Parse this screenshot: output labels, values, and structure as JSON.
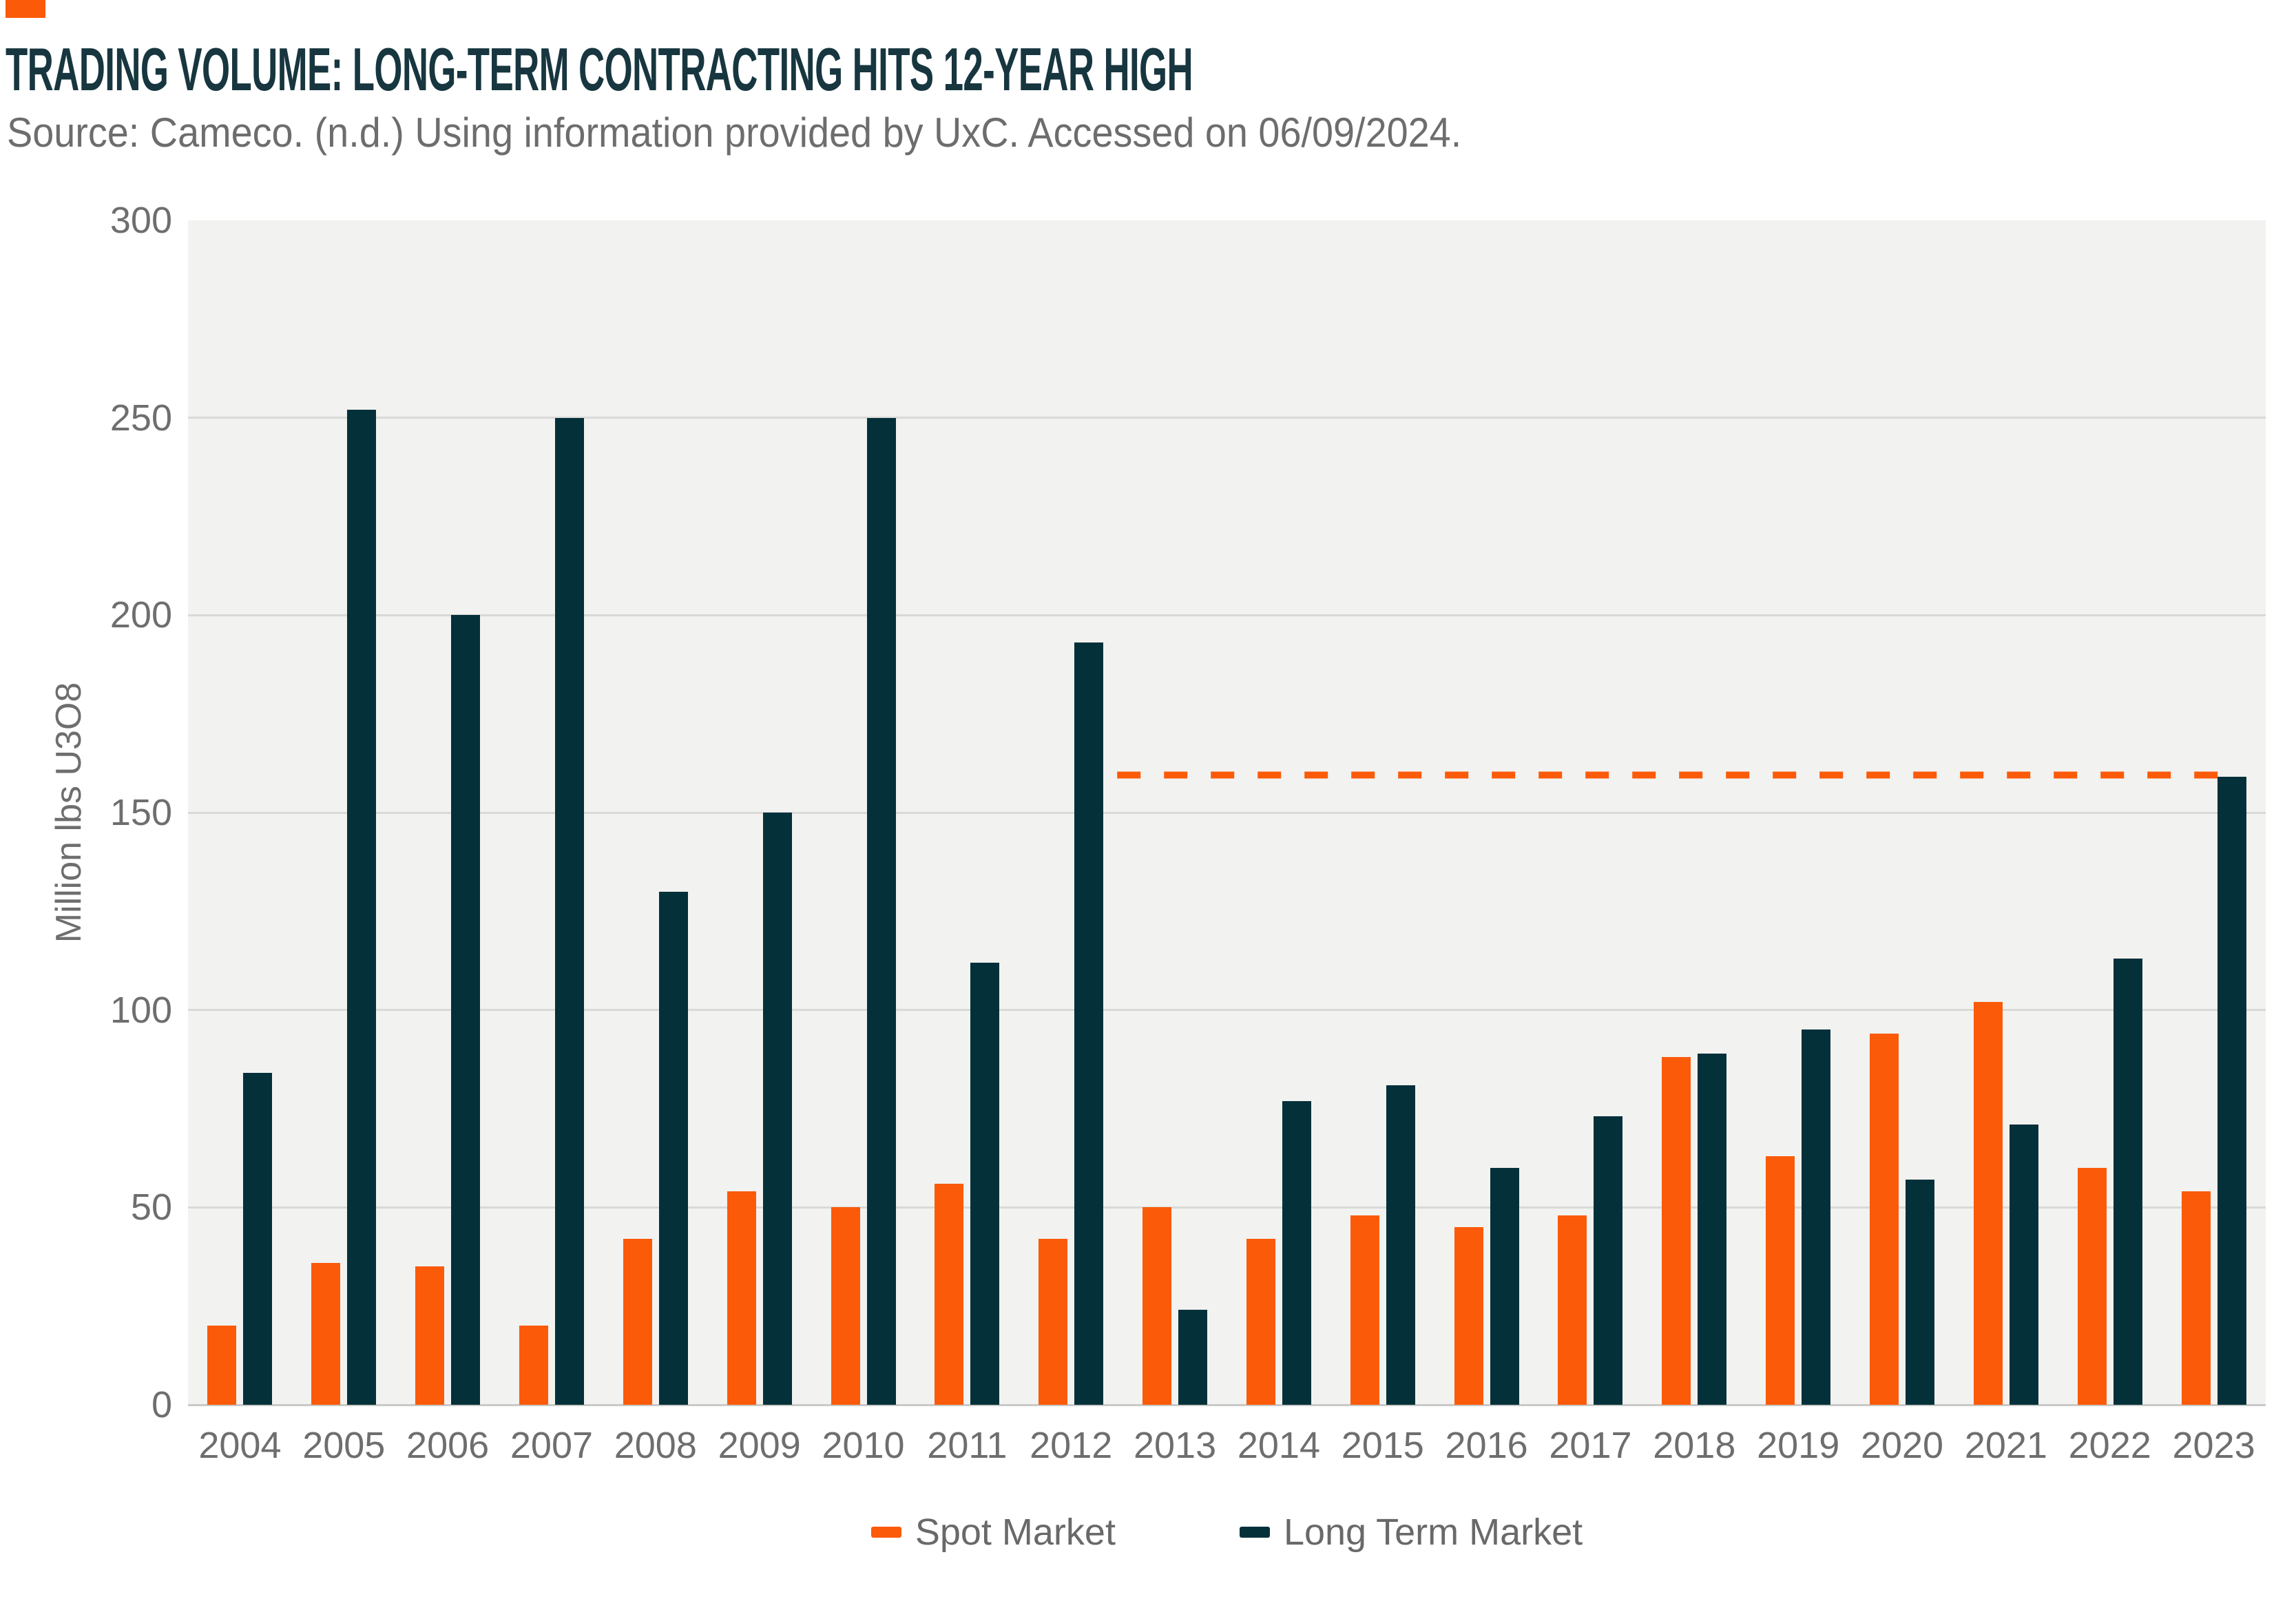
{
  "header": {
    "title": "TRADING VOLUME: LONG-TERM CONTRACTING HITS 12-YEAR HIGH",
    "source": "Source: Cameco. (n.d.) Using information provided by UxC. Accessed on 06/09/2024."
  },
  "chart_data": {
    "type": "bar",
    "title": "TRADING VOLUME: LONG-TERM CONTRACTING HITS 12-YEAR HIGH",
    "ylabel": "Million lbs U3O8",
    "xlabel": "",
    "ylim": [
      0,
      300
    ],
    "y_ticks": [
      0,
      50,
      100,
      150,
      200,
      250,
      300
    ],
    "grid": "horizontal",
    "legend_position": "bottom-center",
    "categories": [
      "2004",
      "2005",
      "2006",
      "2007",
      "2008",
      "2009",
      "2010",
      "2011",
      "2012",
      "2013",
      "2014",
      "2015",
      "2016",
      "2017",
      "2018",
      "2019",
      "2020",
      "2021",
      "2022",
      "2023"
    ],
    "series": [
      {
        "name": "Spot Market",
        "color": "#FB5A09",
        "values": [
          20,
          36,
          35,
          20,
          42,
          54,
          50,
          56,
          42,
          50,
          42,
          48,
          45,
          48,
          88,
          63,
          94,
          102,
          60,
          54
        ]
      },
      {
        "name": "Long Term Market",
        "color": "#04303A",
        "values": [
          84,
          252,
          200,
          250,
          130,
          150,
          250,
          112,
          193,
          24,
          77,
          81,
          60,
          73,
          89,
          95,
          57,
          71,
          113,
          159
        ]
      }
    ],
    "reference_line": {
      "style": "dashed",
      "color": "#FB5A09",
      "value": 159.5,
      "starts_after_category": "2012",
      "ends_at_category": "2023"
    }
  },
  "theme": {
    "brand_block_color": "#FB5A09",
    "title_color": "#17363F",
    "source_color": "#6D6D6D",
    "tick_color": "#6E6E6E",
    "axis_label_color": "#6E6E6E",
    "legend_text_color": "#696969",
    "plot_background": "#F2F2F0",
    "gridline_color": "#D9D9D7",
    "baseline_color": "#C9C9C7",
    "page_background": "#FFFFFF"
  }
}
